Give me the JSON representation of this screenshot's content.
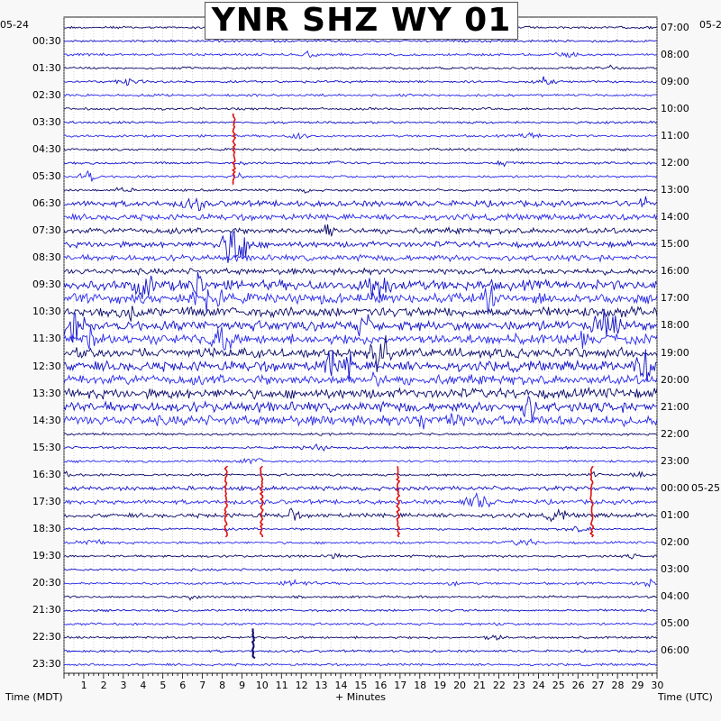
{
  "title": "YNR SHZ WY 01",
  "footer": {
    "left_label": "Time (MDT)",
    "center_label": "+ Minutes",
    "right_label": "Time (UTC)"
  },
  "dates": {
    "left_start": "05-24",
    "right_start": "05-2",
    "right_midnight": "05-25"
  },
  "colors": {
    "trace_dark": "#0a0a6a",
    "trace_mid": "#1010c8",
    "trace_light": "#2828ee",
    "event_red": "#e01010",
    "grid_dots": "#b8b8b8"
  },
  "chart_data": {
    "type": "helicorder",
    "title": "YNR SHZ WY 01",
    "xlabel": "+ Minutes",
    "x_ticks": [
      1,
      2,
      3,
      4,
      5,
      6,
      7,
      8,
      9,
      10,
      11,
      12,
      13,
      14,
      15,
      16,
      17,
      18,
      19,
      20,
      21,
      22,
      23,
      24,
      25,
      26,
      27,
      28,
      29,
      30
    ],
    "xlim": [
      0,
      30
    ],
    "left_axis_label": "Time (MDT)",
    "right_axis_label": "Time (UTC)",
    "left_times": [
      "00:30",
      "01:30",
      "02:30",
      "03:30",
      "04:30",
      "05:30",
      "06:30",
      "07:30",
      "08:30",
      "09:30",
      "10:30",
      "11:30",
      "12:30",
      "13:30",
      "14:30",
      "15:30",
      "16:30",
      "17:30",
      "18:30",
      "19:30",
      "20:30",
      "21:30",
      "22:30",
      "23:30"
    ],
    "right_times": [
      "07:00",
      "08:00",
      "09:00",
      "10:00",
      "11:00",
      "12:00",
      "13:00",
      "14:00",
      "15:00",
      "16:00",
      "17:00",
      "18:00",
      "19:00",
      "20:00",
      "21:00",
      "22:00",
      "23:00",
      "00:00",
      "01:00",
      "02:00",
      "03:00",
      "04:00",
      "05:00",
      "06:00"
    ],
    "lines_per_hour": 2,
    "line_minutes": 30,
    "trace_colors_cycle": [
      "dark",
      "mid",
      "light"
    ],
    "activity_bands": [
      {
        "from_mdt": "06:30",
        "to_mdt": "09:30",
        "level": "moderate"
      },
      {
        "from_mdt": "09:30",
        "to_mdt": "14:30",
        "level": "high"
      },
      {
        "from_mdt": "17:00",
        "to_mdt": "18:00",
        "level": "bursts"
      }
    ],
    "events": [
      {
        "label": "red_spike_1",
        "mdt": "03:30–05:30",
        "minute": 8.6
      },
      {
        "label": "red_spike_2",
        "mdt": "16:30–18:30",
        "minute": 8.2
      },
      {
        "label": "red_spike_3",
        "mdt": "16:30–18:30",
        "minute": 10.0
      },
      {
        "label": "red_spike_4",
        "mdt": "16:30–18:30",
        "minute": 16.9
      },
      {
        "label": "red_spike_5",
        "mdt": "16:30–18:30",
        "minute": 26.7
      },
      {
        "label": "large_wave",
        "mdt": "22:30",
        "minute": 9.6
      }
    ]
  }
}
